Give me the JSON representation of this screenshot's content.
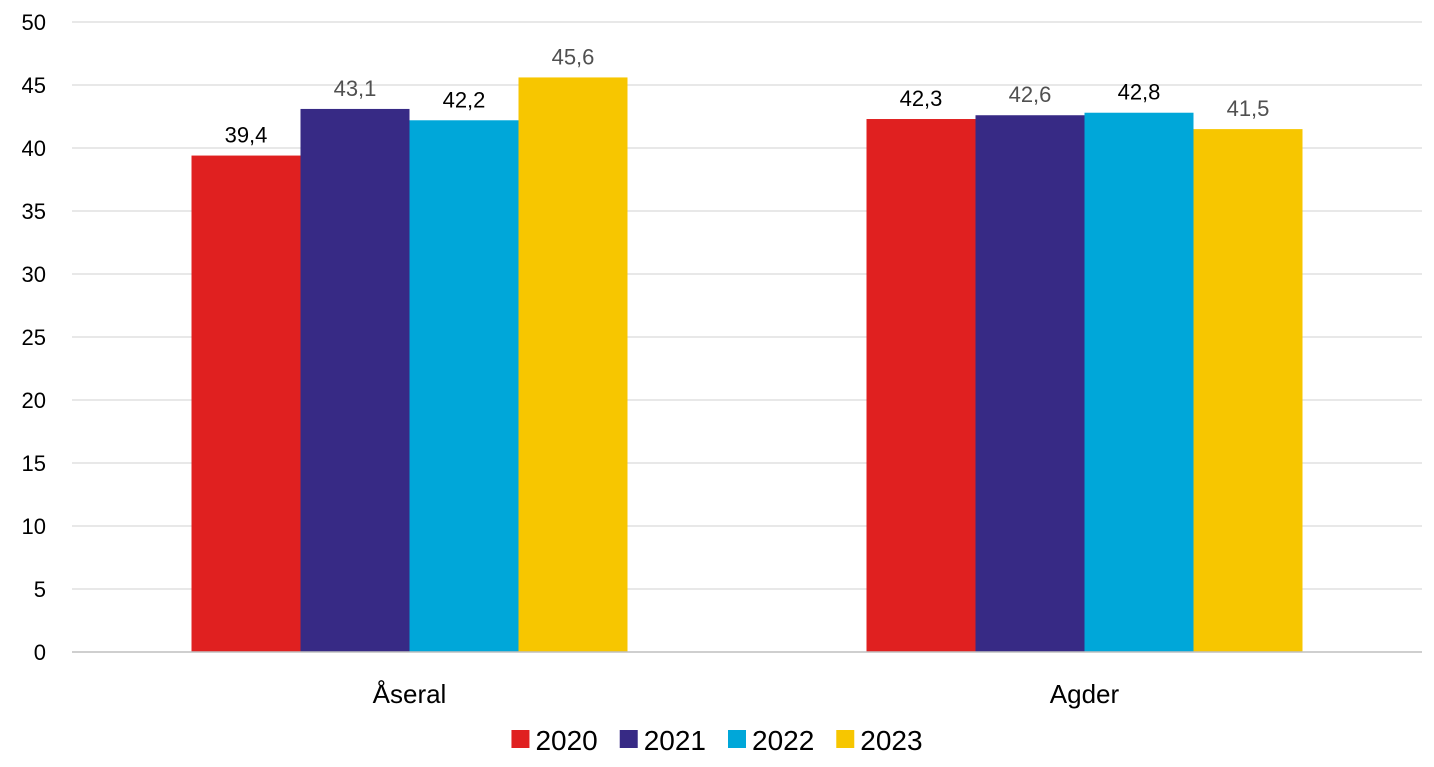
{
  "chart_data": {
    "type": "bar",
    "title": "",
    "xlabel": "",
    "ylabel": "",
    "categories": [
      "Åseral",
      "Agder"
    ],
    "series": [
      {
        "name": "2020",
        "color": "#e02020",
        "label_color": "#000000",
        "values": [
          39.4,
          42.3
        ],
        "labels": [
          "39,4",
          "42,3"
        ]
      },
      {
        "name": "2021",
        "color": "#372a85",
        "label_color": "#505050",
        "values": [
          43.1,
          42.6
        ],
        "labels": [
          "43,1",
          "42,6"
        ]
      },
      {
        "name": "2022",
        "color": "#00a7d9",
        "label_color": "#000000",
        "values": [
          42.2,
          42.8
        ],
        "labels": [
          "42,2",
          "42,8"
        ]
      },
      {
        "name": "2023",
        "color": "#f7c600",
        "label_color": "#505050",
        "values": [
          45.6,
          41.5
        ],
        "labels": [
          "45,6",
          "41,5"
        ]
      }
    ],
    "ylim": [
      0,
      50
    ],
    "yticks": [
      "0",
      "5",
      "10",
      "15",
      "20",
      "25",
      "30",
      "35",
      "40",
      "45",
      "50"
    ],
    "grid": true,
    "legend_position": "bottom"
  }
}
